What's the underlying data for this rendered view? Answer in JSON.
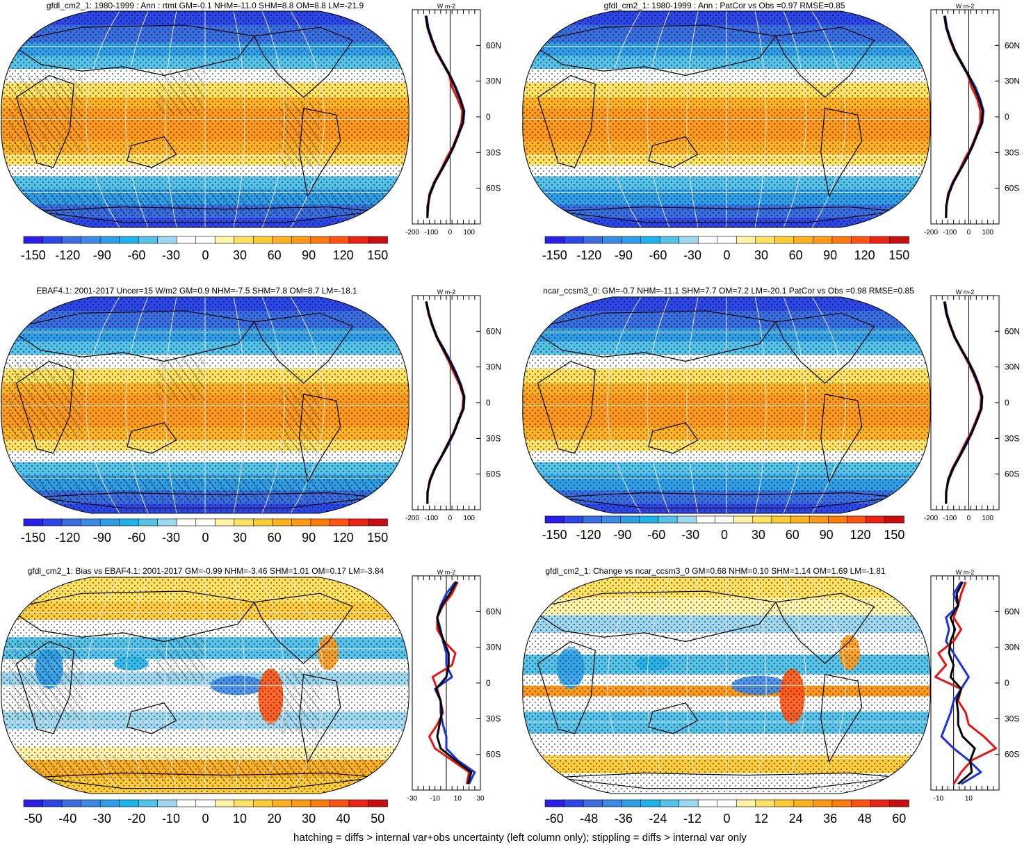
{
  "footer": "hatching = diffs > internal var+obs uncertainty (left column only); stippling = diffs > internal var only",
  "colors": {
    "ramp": [
      "#2b1ee6",
      "#2d46e8",
      "#3a6ee0",
      "#3c8ae8",
      "#2c9fe8",
      "#1bb3ea",
      "#55c2ea",
      "#9ed8f0",
      "#ffffff",
      "#ffffff",
      "#fff4a8",
      "#ffe262",
      "#ffcc33",
      "#ffb21e",
      "#ff9a16",
      "#ff7b0e",
      "#ff5410",
      "#ec2418",
      "#c80e10"
    ],
    "obs_line": "#1a2fe0",
    "model_line": "#e81414",
    "combo_line": "#000000",
    "continent": "#000000",
    "grid": "#e6e6e6"
  },
  "chart_data": [
    {
      "type": "heatmap",
      "title": "gfdl_cm2_1: 1980-1999 : Ann : rtmt GM=-0.1 NHM=-11.0 SHM=8.8 OM=8.8 LM=-21.9",
      "field": "absolute",
      "colorbar": {
        "ticks": [
          "-150",
          "-120",
          "-90",
          "-60",
          "-30",
          "0",
          "30",
          "60",
          "90",
          "120",
          "150"
        ],
        "range": [
          -150,
          150
        ]
      },
      "profile": {
        "unit": "W m-2",
        "xlim": [
          -200,
          160
        ],
        "xticks": [
          "-200",
          "-100",
          "0",
          "100"
        ],
        "ylabels": [
          "60N",
          "30N",
          "0",
          "30S",
          "60S"
        ],
        "lat": [
          85,
          75,
          65,
          55,
          45,
          35,
          25,
          15,
          5,
          -5,
          -15,
          -25,
          -35,
          -45,
          -55,
          -65,
          -75,
          -85
        ],
        "series": [
          {
            "role": "obs",
            "values": [
              -125,
              -115,
              -95,
              -70,
              -35,
              0,
              30,
              55,
              75,
              70,
              45,
              20,
              -10,
              -45,
              -80,
              -105,
              -120,
              -120
            ]
          },
          {
            "role": "model",
            "values": [
              -130,
              -120,
              -100,
              -75,
              -40,
              -5,
              10,
              40,
              65,
              60,
              40,
              15,
              -20,
              -50,
              -85,
              -110,
              -115,
              -120
            ]
          },
          {
            "role": "combo",
            "values": [
              -128,
              -118,
              -98,
              -72,
              -38,
              -2,
              25,
              52,
              72,
              66,
              43,
              18,
              -12,
              -47,
              -82,
              -107,
              -118,
              -120
            ]
          }
        ]
      }
    },
    {
      "type": "heatmap",
      "title": "gfdl_cm2_1: 1980-1999 : Ann : PatCor vs Obs =0.97 RMSE=0.85",
      "field": "absolute",
      "colorbar": {
        "ticks": [
          "-150",
          "-120",
          "-90",
          "-60",
          "-30",
          "0",
          "30",
          "60",
          "90",
          "120",
          "150"
        ],
        "range": [
          -150,
          150
        ]
      },
      "profile": {
        "unit": "W m-2",
        "xlim": [
          -200,
          160
        ],
        "xticks": [
          "-200",
          "-100",
          "0",
          "100"
        ],
        "ylabels": [
          "60N",
          "30N",
          "0",
          "30S",
          "60S"
        ],
        "lat": [
          85,
          75,
          65,
          55,
          45,
          35,
          25,
          15,
          5,
          -5,
          -15,
          -25,
          -35,
          -45,
          -55,
          -65,
          -75,
          -85
        ],
        "series": [
          {
            "role": "obs",
            "values": [
              -125,
              -115,
              -95,
              -70,
              -35,
              0,
              35,
              60,
              78,
              72,
              45,
              20,
              -10,
              -45,
              -80,
              -105,
              -120,
              -120
            ]
          },
          {
            "role": "model",
            "values": [
              -130,
              -120,
              -100,
              -75,
              -40,
              -5,
              15,
              45,
              62,
              60,
              40,
              15,
              -20,
              -50,
              -85,
              -110,
              -118,
              -120
            ]
          },
          {
            "role": "combo",
            "values": [
              -128,
              -118,
              -98,
              -72,
              -38,
              -2,
              28,
              55,
              74,
              68,
              43,
              18,
              -12,
              -47,
              -82,
              -107,
              -118,
              -120
            ]
          }
        ]
      }
    },
    {
      "type": "heatmap",
      "title": "EBAF4.1: 2001-2017 Uncer=15 W/m2 GM=0.9 NHM=-7.5 SHM=7.8 OM=8.7 LM=-18.1",
      "field": "absolute",
      "colorbar": {
        "ticks": [
          "-150",
          "-120",
          "-90",
          "-60",
          "-30",
          "0",
          "30",
          "60",
          "90",
          "120",
          "150"
        ],
        "range": [
          -150,
          150
        ]
      },
      "profile": {
        "unit": "W m-2",
        "xlim": [
          -200,
          160
        ],
        "xticks": [
          "-200",
          "-100",
          "0",
          "100"
        ],
        "ylabels": [
          "60N",
          "30N",
          "0",
          "30S",
          "60S"
        ],
        "lat": [
          85,
          75,
          65,
          55,
          45,
          35,
          25,
          15,
          5,
          -5,
          -15,
          -25,
          -35,
          -45,
          -55,
          -65,
          -75,
          -85
        ],
        "series": [
          {
            "role": "obs",
            "values": [
              -125,
              -112,
              -92,
              -68,
              -32,
              2,
              32,
              58,
              76,
              72,
              46,
              22,
              -8,
              -43,
              -78,
              -104,
              -120,
              -120
            ]
          },
          {
            "role": "model",
            "values": [
              -128,
              -115,
              -96,
              -72,
              -40,
              -8,
              20,
              50,
              70,
              66,
              42,
              18,
              -15,
              -46,
              -82,
              -108,
              -118,
              -120
            ]
          },
          {
            "role": "combo",
            "values": [
              -126,
              -113,
              -94,
              -70,
              -36,
              -2,
              28,
              55,
              74,
              70,
              44,
              20,
              -12,
              -45,
              -80,
              -106,
              -119,
              -120
            ]
          }
        ]
      }
    },
    {
      "type": "heatmap",
      "title": "ncar_ccsm3_0: GM=-0.7 NHM=-11.1 SHM=7.7 OM=7.2 LM=-20.1 PatCor vs Obs =0.98 RMSE=0.85",
      "field": "absolute",
      "colorbar": {
        "ticks": [
          "-150",
          "-120",
          "-90",
          "-60",
          "-30",
          "0",
          "30",
          "60",
          "90",
          "120",
          "150"
        ],
        "range": [
          -150,
          150
        ]
      },
      "profile": {
        "unit": "W m-2",
        "xlim": [
          -200,
          160
        ],
        "xticks": [
          "-200",
          "-100",
          "0",
          "100"
        ],
        "ylabels": [
          "60N",
          "30N",
          "0",
          "30S",
          "60S"
        ],
        "lat": [
          85,
          75,
          65,
          55,
          45,
          35,
          25,
          15,
          5,
          -5,
          -15,
          -25,
          -35,
          -45,
          -55,
          -65,
          -75,
          -85
        ],
        "series": [
          {
            "role": "obs",
            "values": [
              -125,
              -115,
              -96,
              -72,
              -38,
              -2,
              30,
              55,
              72,
              68,
              44,
              18,
              -12,
              -46,
              -80,
              -106,
              -120,
              -120
            ]
          },
          {
            "role": "model",
            "values": [
              -130,
              -120,
              -100,
              -76,
              -42,
              -8,
              22,
              48,
              66,
              62,
              38,
              12,
              -22,
              -52,
              -86,
              -110,
              -118,
              -120
            ]
          },
          {
            "role": "combo",
            "values": [
              -128,
              -118,
              -98,
              -74,
              -40,
              -4,
              26,
              52,
              70,
              66,
              42,
              16,
              -16,
              -48,
              -83,
              -108,
              -119,
              -120
            ]
          }
        ]
      }
    },
    {
      "type": "heatmap",
      "title": "gfdl_cm2_1: Bias vs EBAF4.1: 2001-2017 GM=-0.99 NHM=-3.46 SHM=1.01 OM=0.17 LM=-3.84",
      "field": "bias",
      "colorbar": {
        "ticks": [
          "-50",
          "-40",
          "-30",
          "-20",
          "-10",
          "0",
          "10",
          "20",
          "30",
          "40",
          "50"
        ],
        "range": [
          -50,
          50
        ]
      },
      "profile": {
        "unit": "W m-2",
        "xlim": [
          -30,
          30
        ],
        "xticks": [
          "-30",
          "-10",
          "10",
          "30"
        ],
        "ylabels": [
          "60N",
          "30N",
          "0",
          "30S",
          "60S"
        ],
        "lat": [
          85,
          75,
          65,
          55,
          45,
          35,
          25,
          15,
          5,
          -5,
          -15,
          -25,
          -35,
          -45,
          -55,
          -65,
          -75,
          -85
        ],
        "series": [
          {
            "role": "obs",
            "values": [
              8,
              0,
              -5,
              -8,
              -5,
              -3,
              0,
              0,
              5,
              -10,
              -5,
              -5,
              -3,
              0,
              0,
              10,
              25,
              20
            ]
          },
          {
            "role": "model",
            "values": [
              10,
              5,
              -3,
              -8,
              -8,
              -2,
              8,
              5,
              -12,
              -8,
              -5,
              -3,
              -8,
              -15,
              -10,
              5,
              20,
              18
            ]
          },
          {
            "role": "combo",
            "values": [
              9,
              3,
              -4,
              -8,
              -6,
              -2,
              2,
              2,
              0,
              -9,
              -5,
              -4,
              -6,
              -8,
              -5,
              8,
              22,
              19
            ]
          }
        ]
      }
    },
    {
      "type": "heatmap",
      "title": "gfdl_cm2_1: Change vs ncar_ccsm3_0 GM=0.68 NHM=0.10 SHM=1.14 OM=1.69 LM=-1.81",
      "field": "change",
      "colorbar": {
        "ticks": [
          "-60",
          "-48",
          "-36",
          "-24",
          "-12",
          "0",
          "12",
          "24",
          "36",
          "48",
          "60"
        ],
        "range": [
          -60,
          60
        ]
      },
      "profile": {
        "unit": "W m-2",
        "xlim": [
          -15,
          30
        ],
        "xticks": [
          "-10",
          "10"
        ],
        "ylabels": [
          "60N",
          "30N",
          "0",
          "30S",
          "60S"
        ],
        "lat": [
          85,
          75,
          65,
          55,
          45,
          35,
          25,
          15,
          5,
          -5,
          -15,
          -25,
          -35,
          -45,
          -55,
          -65,
          -75,
          -85
        ],
        "series": [
          {
            "role": "obs",
            "values": [
              5,
              0,
              3,
              -5,
              -3,
              -5,
              0,
              5,
              10,
              5,
              0,
              -2,
              -5,
              -8,
              0,
              10,
              18,
              5
            ]
          },
          {
            "role": "model",
            "values": [
              8,
              5,
              3,
              0,
              5,
              0,
              -10,
              -5,
              -12,
              5,
              3,
              8,
              10,
              20,
              28,
              12,
              5,
              0
            ]
          },
          {
            "role": "combo",
            "values": [
              6,
              2,
              3,
              -2,
              1,
              -2,
              -3,
              0,
              -2,
              5,
              2,
              3,
              3,
              6,
              14,
              11,
              12,
              3
            ]
          }
        ]
      }
    }
  ]
}
